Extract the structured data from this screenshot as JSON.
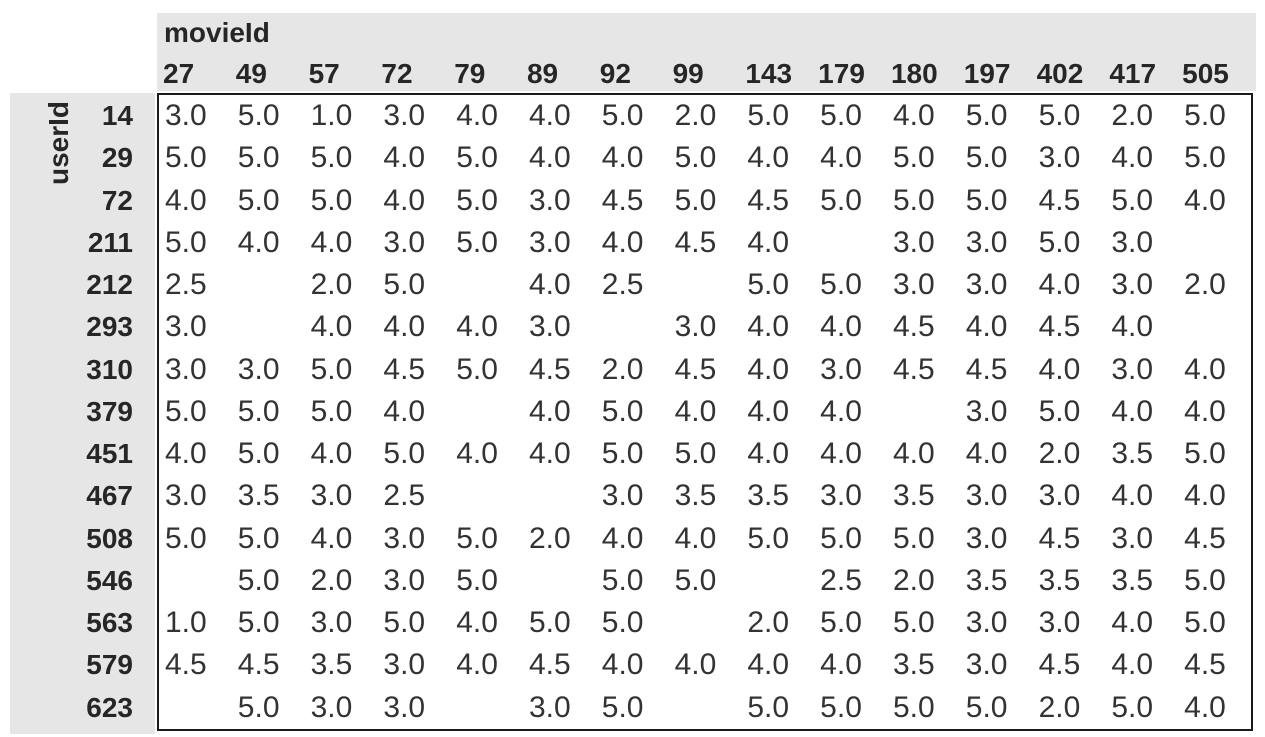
{
  "table": {
    "col_axis_label": "movieId",
    "row_axis_label": "userId",
    "columns": [
      "27",
      "49",
      "57",
      "72",
      "79",
      "89",
      "92",
      "99",
      "143",
      "179",
      "180",
      "197",
      "402",
      "417",
      "505"
    ],
    "rows": [
      {
        "id": "14",
        "values": [
          "3.0",
          "5.0",
          "1.0",
          "3.0",
          "4.0",
          "4.0",
          "5.0",
          "2.0",
          "5.0",
          "5.0",
          "4.0",
          "5.0",
          "5.0",
          "2.0",
          "5.0"
        ]
      },
      {
        "id": "29",
        "values": [
          "5.0",
          "5.0",
          "5.0",
          "4.0",
          "5.0",
          "4.0",
          "4.0",
          "5.0",
          "4.0",
          "4.0",
          "5.0",
          "5.0",
          "3.0",
          "4.0",
          "5.0"
        ]
      },
      {
        "id": "72",
        "values": [
          "4.0",
          "5.0",
          "5.0",
          "4.0",
          "5.0",
          "3.0",
          "4.5",
          "5.0",
          "4.5",
          "5.0",
          "5.0",
          "5.0",
          "4.5",
          "5.0",
          "4.0"
        ]
      },
      {
        "id": "211",
        "values": [
          "5.0",
          "4.0",
          "4.0",
          "3.0",
          "5.0",
          "3.0",
          "4.0",
          "4.5",
          "4.0",
          "",
          "3.0",
          "3.0",
          "5.0",
          "3.0",
          ""
        ]
      },
      {
        "id": "212",
        "values": [
          "2.5",
          "",
          "2.0",
          "5.0",
          "",
          "4.0",
          "2.5",
          "",
          "5.0",
          "5.0",
          "3.0",
          "3.0",
          "4.0",
          "3.0",
          "2.0"
        ]
      },
      {
        "id": "293",
        "values": [
          "3.0",
          "",
          "4.0",
          "4.0",
          "4.0",
          "3.0",
          "",
          "3.0",
          "4.0",
          "4.0",
          "4.5",
          "4.0",
          "4.5",
          "4.0",
          ""
        ]
      },
      {
        "id": "310",
        "values": [
          "3.0",
          "3.0",
          "5.0",
          "4.5",
          "5.0",
          "4.5",
          "2.0",
          "4.5",
          "4.0",
          "3.0",
          "4.5",
          "4.5",
          "4.0",
          "3.0",
          "4.0"
        ]
      },
      {
        "id": "379",
        "values": [
          "5.0",
          "5.0",
          "5.0",
          "4.0",
          "",
          "4.0",
          "5.0",
          "4.0",
          "4.0",
          "4.0",
          "",
          "3.0",
          "5.0",
          "4.0",
          "4.0"
        ]
      },
      {
        "id": "451",
        "values": [
          "4.0",
          "5.0",
          "4.0",
          "5.0",
          "4.0",
          "4.0",
          "5.0",
          "5.0",
          "4.0",
          "4.0",
          "4.0",
          "4.0",
          "2.0",
          "3.5",
          "5.0"
        ]
      },
      {
        "id": "467",
        "values": [
          "3.0",
          "3.5",
          "3.0",
          "2.5",
          "",
          "",
          "3.0",
          "3.5",
          "3.5",
          "3.0",
          "3.5",
          "3.0",
          "3.0",
          "4.0",
          "4.0"
        ]
      },
      {
        "id": "508",
        "values": [
          "5.0",
          "5.0",
          "4.0",
          "3.0",
          "5.0",
          "2.0",
          "4.0",
          "4.0",
          "5.0",
          "5.0",
          "5.0",
          "3.0",
          "4.5",
          "3.0",
          "4.5"
        ]
      },
      {
        "id": "546",
        "values": [
          "",
          "5.0",
          "2.0",
          "3.0",
          "5.0",
          "",
          "5.0",
          "5.0",
          "",
          "2.5",
          "2.0",
          "3.5",
          "3.5",
          "3.5",
          "5.0"
        ]
      },
      {
        "id": "563",
        "values": [
          "1.0",
          "5.0",
          "3.0",
          "5.0",
          "4.0",
          "5.0",
          "5.0",
          "",
          "2.0",
          "5.0",
          "5.0",
          "3.0",
          "3.0",
          "4.0",
          "5.0"
        ]
      },
      {
        "id": "579",
        "values": [
          "4.5",
          "4.5",
          "3.5",
          "3.0",
          "4.0",
          "4.5",
          "4.0",
          "4.0",
          "4.0",
          "4.0",
          "3.5",
          "3.0",
          "4.5",
          "4.0",
          "4.5"
        ]
      },
      {
        "id": "623",
        "values": [
          "",
          "5.0",
          "3.0",
          "3.0",
          "",
          "3.0",
          "5.0",
          "",
          "5.0",
          "5.0",
          "5.0",
          "5.0",
          "2.0",
          "5.0",
          "4.0"
        ]
      }
    ]
  },
  "chart_data": {
    "type": "table",
    "title": "",
    "xlabel": "movieId",
    "ylabel": "userId",
    "columns": [
      27,
      49,
      57,
      72,
      79,
      89,
      92,
      99,
      143,
      179,
      180,
      197,
      402,
      417,
      505
    ],
    "row_ids": [
      14,
      29,
      72,
      211,
      212,
      293,
      310,
      379,
      451,
      467,
      508,
      546,
      563,
      579,
      623
    ],
    "matrix": [
      [
        3.0,
        5.0,
        1.0,
        3.0,
        4.0,
        4.0,
        5.0,
        2.0,
        5.0,
        5.0,
        4.0,
        5.0,
        5.0,
        2.0,
        5.0
      ],
      [
        5.0,
        5.0,
        5.0,
        4.0,
        5.0,
        4.0,
        4.0,
        5.0,
        4.0,
        4.0,
        5.0,
        5.0,
        3.0,
        4.0,
        5.0
      ],
      [
        4.0,
        5.0,
        5.0,
        4.0,
        5.0,
        3.0,
        4.5,
        5.0,
        4.5,
        5.0,
        5.0,
        5.0,
        4.5,
        5.0,
        4.0
      ],
      [
        5.0,
        4.0,
        4.0,
        3.0,
        5.0,
        3.0,
        4.0,
        4.5,
        4.0,
        null,
        3.0,
        3.0,
        5.0,
        3.0,
        null
      ],
      [
        2.5,
        null,
        2.0,
        5.0,
        null,
        4.0,
        2.5,
        null,
        5.0,
        5.0,
        3.0,
        3.0,
        4.0,
        3.0,
        2.0
      ],
      [
        3.0,
        null,
        4.0,
        4.0,
        4.0,
        3.0,
        null,
        3.0,
        4.0,
        4.0,
        4.5,
        4.0,
        4.5,
        4.0,
        null
      ],
      [
        3.0,
        3.0,
        5.0,
        4.5,
        5.0,
        4.5,
        2.0,
        4.5,
        4.0,
        3.0,
        4.5,
        4.5,
        4.0,
        3.0,
        4.0
      ],
      [
        5.0,
        5.0,
        5.0,
        4.0,
        null,
        4.0,
        5.0,
        4.0,
        4.0,
        4.0,
        null,
        3.0,
        5.0,
        4.0,
        4.0
      ],
      [
        4.0,
        5.0,
        4.0,
        5.0,
        4.0,
        4.0,
        5.0,
        5.0,
        4.0,
        4.0,
        4.0,
        4.0,
        2.0,
        3.5,
        5.0
      ],
      [
        3.0,
        3.5,
        3.0,
        2.5,
        null,
        null,
        3.0,
        3.5,
        3.5,
        3.0,
        3.5,
        3.0,
        3.0,
        4.0,
        4.0
      ],
      [
        5.0,
        5.0,
        4.0,
        3.0,
        5.0,
        2.0,
        4.0,
        4.0,
        5.0,
        5.0,
        5.0,
        3.0,
        4.5,
        3.0,
        4.5
      ],
      [
        null,
        5.0,
        2.0,
        3.0,
        5.0,
        null,
        5.0,
        5.0,
        null,
        2.5,
        2.0,
        3.5,
        3.5,
        3.5,
        5.0
      ],
      [
        1.0,
        5.0,
        3.0,
        5.0,
        4.0,
        5.0,
        5.0,
        null,
        2.0,
        5.0,
        5.0,
        3.0,
        3.0,
        4.0,
        5.0
      ],
      [
        4.5,
        4.5,
        3.5,
        3.0,
        4.0,
        4.5,
        4.0,
        4.0,
        4.0,
        4.0,
        3.5,
        3.0,
        4.5,
        4.0,
        4.5
      ],
      [
        null,
        5.0,
        3.0,
        3.0,
        null,
        3.0,
        5.0,
        null,
        5.0,
        5.0,
        5.0,
        5.0,
        2.0,
        5.0,
        4.0
      ]
    ]
  },
  "colors": {
    "header_band_bg": "#e6e6e6",
    "header_text": "#262626",
    "value_text": "#333333",
    "body_border": "#1a1a1a",
    "body_bg": "#ffffff"
  }
}
